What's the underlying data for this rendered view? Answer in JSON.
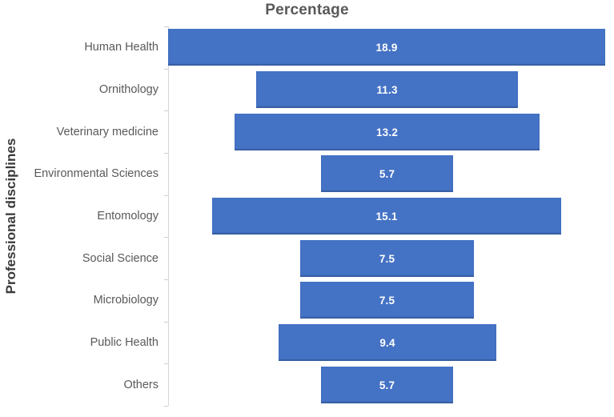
{
  "chart_title": "Percentage",
  "y_axis_title": "Professional disciplines",
  "chart_data": {
    "type": "bar",
    "variant": "funnel-centered",
    "orientation": "horizontal",
    "title": "Percentage",
    "ylabel": "Professional disciplines",
    "xlabel": "",
    "categories": [
      "Human Health",
      "Ornithology",
      "Veterinary medicine",
      "Environmental Sciences",
      "Entomology",
      "Social Science",
      "Microbiology",
      "Public Health",
      "Others"
    ],
    "values": [
      18.9,
      11.3,
      13.2,
      5.7,
      15.1,
      7.5,
      7.5,
      9.4,
      5.7
    ],
    "value_labels": [
      "18.9",
      "11.3",
      "13.2",
      "5.7",
      "15.1",
      "7.5",
      "7.5",
      "9.4",
      "5.7"
    ],
    "data_labels_shown": true,
    "legend": false,
    "grid": false,
    "axis_domain_units": 19.0,
    "colors": {
      "bar": "#4472c4",
      "bar_edge": "#2e5597",
      "data_label": "#ffffff",
      "category_label": "#595959",
      "title": "#595959",
      "axis_label": "#3b3b3b",
      "axis_line": "#d6d6d6"
    }
  }
}
